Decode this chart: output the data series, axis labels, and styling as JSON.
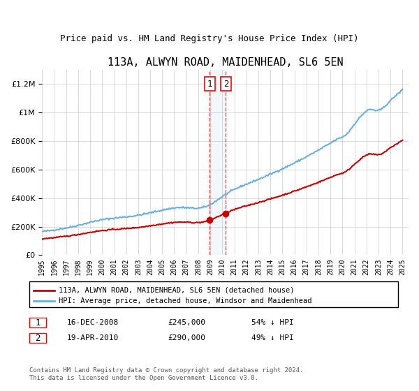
{
  "title": "113A, ALWYN ROAD, MAIDENHEAD, SL6 5EN",
  "subtitle": "Price paid vs. HM Land Registry's House Price Index (HPI)",
  "legend_line1": "113A, ALWYN ROAD, MAIDENHEAD, SL6 5EN (detached house)",
  "legend_line2": "HPI: Average price, detached house, Windsor and Maidenhead",
  "transaction1_label": "1",
  "transaction1_date": "16-DEC-2008",
  "transaction1_price": "£245,000",
  "transaction1_hpi": "54% ↓ HPI",
  "transaction2_label": "2",
  "transaction2_date": "19-APR-2010",
  "transaction2_price": "£290,000",
  "transaction2_hpi": "49% ↓ HPI",
  "footer": "Contains HM Land Registry data © Crown copyright and database right 2024.\nThis data is licensed under the Open Government Licence v3.0.",
  "hpi_color": "#6ab0de",
  "price_color": "#cc0000",
  "marker_color": "#cc0000",
  "highlight_color": "#ddeeff",
  "transaction1_x": 2008.96,
  "transaction2_x": 2010.3,
  "transaction1_y": 245000,
  "transaction2_y": 290000,
  "ylim": [
    0,
    1300000
  ],
  "xlim_start": 1995,
  "xlim_end": 2025.5
}
